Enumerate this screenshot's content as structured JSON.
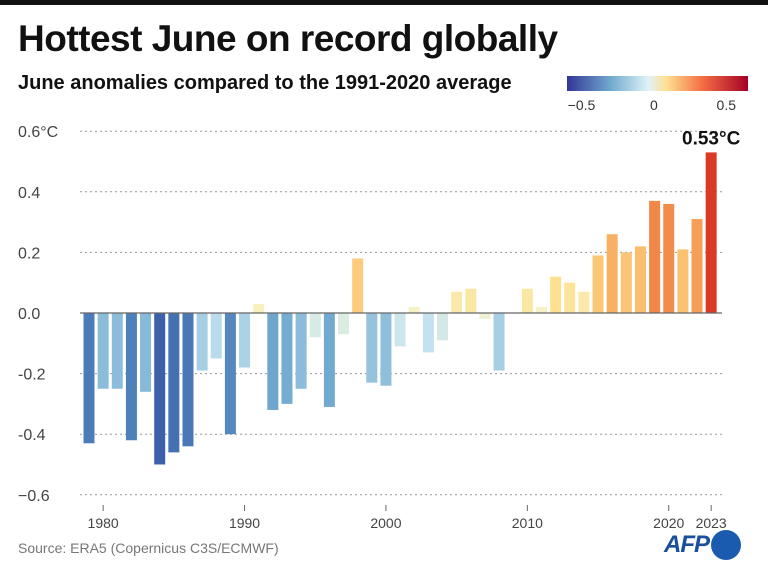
{
  "title": "Hottest June on record globally",
  "subtitle": "June anomalies compared to the 1991-2020 average",
  "source": "Source: ERA5 (Copernicus C3S/ECMWF)",
  "logo_text": "AFP",
  "colorbar": {
    "ticks": [
      "−0.5",
      "0",
      "0.5"
    ],
    "tick_values": [
      -0.5,
      0,
      0.5
    ],
    "range": [
      -0.6,
      0.65
    ]
  },
  "colors": {
    "cold": "#4a6fb5",
    "neutral": "#f8f4c0",
    "warm": "#f7b868",
    "hot": "#d7301f"
  },
  "chart_data": {
    "type": "bar",
    "title": "Hottest June on record globally",
    "subtitle": "June anomalies compared to the 1991-2020 average",
    "xlabel": "",
    "ylabel": "",
    "ylim": [
      -0.6,
      0.6
    ],
    "grid": true,
    "y_ticks": [
      0.6,
      0.4,
      0.2,
      0.0,
      -0.2,
      -0.4,
      -0.6
    ],
    "y_tick_labels": [
      "0.6°C",
      "0.4",
      "0.2",
      "0.0",
      "-0.2",
      "-0.4",
      "−0.6"
    ],
    "x_ticks": [
      1980,
      1990,
      2000,
      2010,
      2020,
      2023
    ],
    "x_tick_labels": [
      "1980",
      "1990",
      "2000",
      "2010",
      "2020",
      "2023"
    ],
    "annotation": "0.53°C",
    "categories": [
      1979,
      1980,
      1981,
      1982,
      1983,
      1984,
      1985,
      1986,
      1987,
      1988,
      1989,
      1990,
      1991,
      1992,
      1993,
      1994,
      1995,
      1996,
      1997,
      1998,
      1999,
      2000,
      2001,
      2002,
      2003,
      2004,
      2005,
      2006,
      2007,
      2008,
      2009,
      2010,
      2011,
      2012,
      2013,
      2014,
      2015,
      2016,
      2017,
      2018,
      2019,
      2020,
      2021,
      2022,
      2023
    ],
    "values": [
      -0.43,
      -0.25,
      -0.25,
      -0.42,
      -0.26,
      -0.5,
      -0.46,
      -0.44,
      -0.19,
      -0.15,
      -0.4,
      -0.18,
      0.03,
      -0.32,
      -0.3,
      -0.25,
      -0.08,
      -0.31,
      -0.07,
      0.18,
      -0.23,
      -0.24,
      -0.11,
      0.02,
      -0.13,
      -0.09,
      0.07,
      0.08,
      -0.02,
      -0.19,
      0.0,
      0.08,
      0.02,
      0.12,
      0.1,
      0.07,
      0.19,
      0.26,
      0.2,
      0.22,
      0.37,
      0.36,
      0.21,
      0.31,
      0.53
    ]
  }
}
